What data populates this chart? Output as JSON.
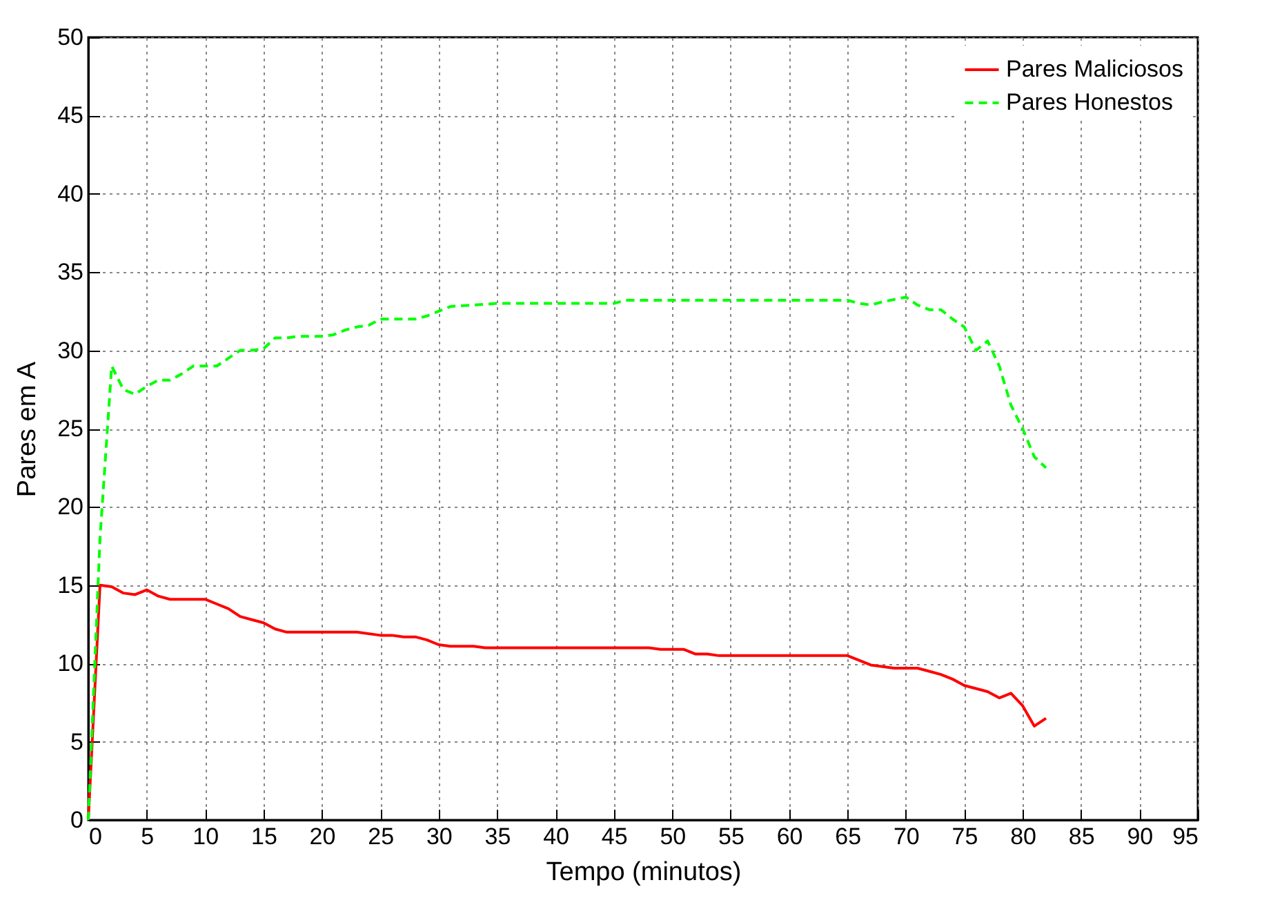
{
  "chart_data": {
    "type": "line",
    "xlabel": "Tempo (minutos)",
    "ylabel": "Pares em A",
    "xlim": [
      0,
      95
    ],
    "ylim": [
      0,
      50
    ],
    "xticks": [
      0,
      5,
      10,
      15,
      20,
      25,
      30,
      35,
      40,
      45,
      50,
      55,
      60,
      65,
      70,
      75,
      80,
      85,
      90,
      95
    ],
    "yticks": [
      0,
      5,
      10,
      15,
      20,
      25,
      30,
      35,
      40,
      45,
      50
    ],
    "grid": true,
    "legend": "top right",
    "marker": "none",
    "series": [
      {
        "name": "Pares Maliciosos",
        "color": "#ff0000",
        "line_style": "solid",
        "x": [
          0,
          1,
          2,
          3,
          4,
          5,
          6,
          7,
          10,
          11,
          12,
          13,
          14,
          15,
          16,
          17,
          20,
          23,
          25,
          26,
          27,
          28,
          29,
          30,
          31,
          33,
          34,
          47,
          48,
          49,
          51,
          52,
          53,
          54,
          65,
          66,
          67,
          69,
          71,
          72,
          73,
          74,
          75,
          76,
          77,
          78,
          79,
          80,
          81,
          82
        ],
        "values": [
          0,
          15,
          14.9,
          14.5,
          14.4,
          14.7,
          14.3,
          14.1,
          14.1,
          13.8,
          13.5,
          13,
          12.8,
          12.6,
          12.2,
          12,
          12,
          12,
          11.8,
          11.8,
          11.7,
          11.7,
          11.5,
          11.2,
          11.1,
          11.1,
          11,
          11,
          11,
          10.9,
          10.9,
          10.6,
          10.6,
          10.5,
          10.5,
          10.2,
          9.9,
          9.7,
          9.7,
          9.5,
          9.3,
          9,
          8.6,
          8.4,
          8.2,
          7.8,
          8.1,
          7.3,
          6,
          6.5
        ]
      },
      {
        "name": "Pares Honestos",
        "color": "#00ff00",
        "line_style": "dashed",
        "x": [
          0,
          1,
          2,
          3,
          4,
          5,
          6,
          7,
          8,
          9,
          11,
          12,
          13,
          14,
          15,
          16,
          17,
          18,
          20,
          21,
          22,
          23,
          24,
          25,
          28,
          29,
          30,
          31,
          33,
          35,
          45,
          46,
          65,
          66,
          67,
          68,
          70,
          71,
          72,
          73,
          74,
          75,
          76,
          77,
          78,
          79,
          80,
          81,
          82
        ],
        "values": [
          0,
          18,
          29,
          27.5,
          27.2,
          27.7,
          28.1,
          28.1,
          28.5,
          29,
          29,
          29.5,
          30,
          30,
          30.1,
          30.8,
          30.8,
          30.9,
          30.9,
          31,
          31.3,
          31.5,
          31.6,
          32,
          32,
          32.2,
          32.5,
          32.8,
          32.9,
          33,
          33,
          33.2,
          33.2,
          33,
          32.9,
          33.1,
          33.4,
          32.9,
          32.6,
          32.6,
          32,
          31.5,
          30,
          30.6,
          29,
          26.5,
          25,
          23.2,
          22.5
        ]
      }
    ]
  }
}
